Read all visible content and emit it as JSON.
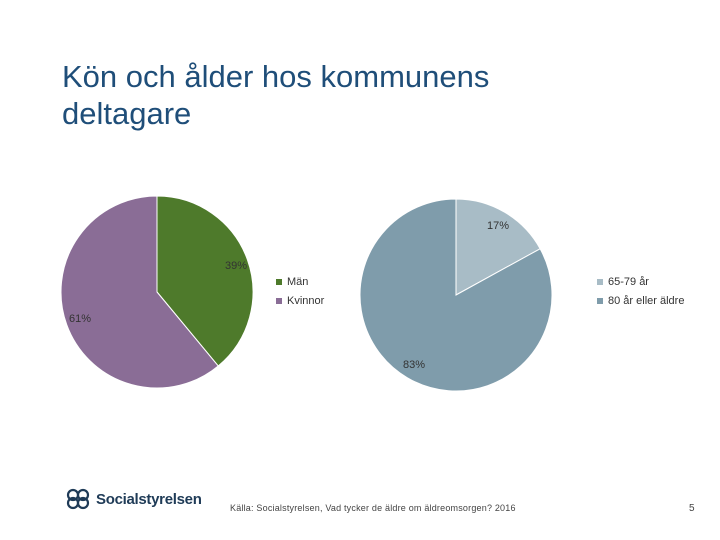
{
  "slide": {
    "title": "Kön och ålder hos kommunens deltagare",
    "source": "Källa: Socialstyrelsen, Vad tycker de äldre om äldreomsorgen? 2016",
    "page_number": "5",
    "logo_text": "Socialstyrelsen"
  },
  "chart_data": [
    {
      "type": "pie",
      "title": "",
      "slices": [
        {
          "label": "Män",
          "value": 39,
          "display": "39%",
          "color": "#4e7a2b"
        },
        {
          "label": "Kvinnor",
          "value": 61,
          "display": "61%",
          "color": "#8a6d96"
        }
      ]
    },
    {
      "type": "pie",
      "title": "",
      "slices": [
        {
          "label": "65-79 år",
          "value": 17,
          "display": "17%",
          "color": "#a8bcc6"
        },
        {
          "label": "80 år eller äldre",
          "value": 83,
          "display": "83%",
          "color": "#7f9cab"
        }
      ]
    }
  ],
  "colors": {
    "title": "#1f4e79",
    "logo": "#1f3b57"
  }
}
